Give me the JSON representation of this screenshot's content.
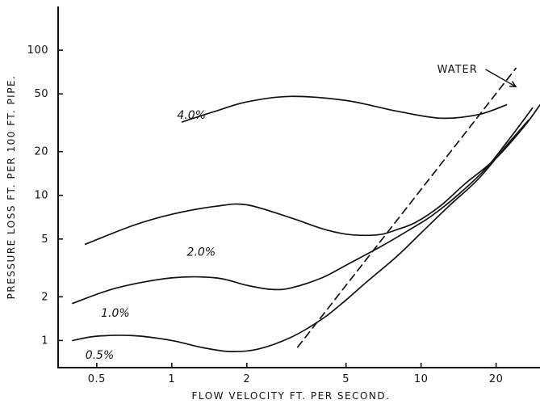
{
  "chart_data": {
    "type": "line",
    "title": "",
    "xlabel": "FLOW VELOCITY FT. PER SECOND.",
    "ylabel": "PRESSURE LOSS FT. PER 100 FT. PIPE.",
    "x_scale": "log",
    "y_scale": "log",
    "xlim": [
      0.35,
      30
    ],
    "ylim": [
      0.65,
      200
    ],
    "grid": false,
    "x_ticks": [
      {
        "value": 0.5,
        "label": "0.5"
      },
      {
        "value": 1,
        "label": "1"
      },
      {
        "value": 2,
        "label": "2"
      },
      {
        "value": 5,
        "label": "5"
      },
      {
        "value": 10,
        "label": "10"
      },
      {
        "value": 20,
        "label": "20"
      }
    ],
    "y_ticks": [
      {
        "value": 1,
        "label": "1"
      },
      {
        "value": 2,
        "label": "2"
      },
      {
        "value": 5,
        "label": "5"
      },
      {
        "value": 10,
        "label": "10"
      },
      {
        "value": 20,
        "label": "20"
      },
      {
        "value": 50,
        "label": "50"
      },
      {
        "value": 100,
        "label": "100"
      }
    ],
    "annotations": [
      {
        "text": "WATER",
        "x": 12.5,
        "y": 70,
        "arrow_to": [
          24,
          56
        ]
      }
    ],
    "series": [
      {
        "name": "4.0%",
        "label_x": 1.05,
        "label_y": 36,
        "style": "solid",
        "x": [
          1.1,
          1.5,
          2,
          3,
          5,
          8,
          12,
          17,
          22
        ],
        "y": [
          32,
          38,
          44,
          48,
          45,
          38,
          34,
          36,
          42
        ]
      },
      {
        "name": "2.0%",
        "label_x": 1.15,
        "label_y": 4.1,
        "style": "solid",
        "x": [
          0.45,
          0.7,
          1,
          1.5,
          2,
          3,
          4,
          5,
          6,
          7,
          8,
          9.5,
          12,
          15,
          20,
          26,
          30
        ],
        "y": [
          4.6,
          6.2,
          7.4,
          8.4,
          8.6,
          7.0,
          5.9,
          5.4,
          5.3,
          5.4,
          5.8,
          6.5,
          8.5,
          12,
          18,
          30,
          42
        ]
      },
      {
        "name": "1.0%",
        "label_x": 0.52,
        "label_y": 1.55,
        "style": "solid",
        "x": [
          0.4,
          0.6,
          1,
          1.5,
          2,
          2.5,
          3,
          4,
          5,
          7,
          9,
          11,
          14,
          18,
          22,
          28
        ],
        "y": [
          1.8,
          2.3,
          2.7,
          2.7,
          2.4,
          2.25,
          2.3,
          2.7,
          3.3,
          4.5,
          5.8,
          7.2,
          10,
          15,
          23,
          40
        ]
      },
      {
        "name": "0.5%",
        "label_x": 0.45,
        "label_y": 0.8,
        "style": "solid",
        "x": [
          0.4,
          0.5,
          0.7,
          1,
          1.3,
          1.7,
          2.2,
          3,
          4,
          5,
          6,
          8,
          10,
          13,
          17,
          22,
          27
        ],
        "y": [
          1.0,
          1.07,
          1.08,
          1.0,
          0.9,
          0.84,
          0.87,
          1.05,
          1.4,
          1.9,
          2.5,
          3.8,
          5.5,
          8.5,
          13,
          22,
          33
        ]
      },
      {
        "name": "WATER",
        "style": "dashed",
        "x": [
          3.2,
          24
        ],
        "y": [
          0.9,
          75
        ]
      }
    ]
  }
}
